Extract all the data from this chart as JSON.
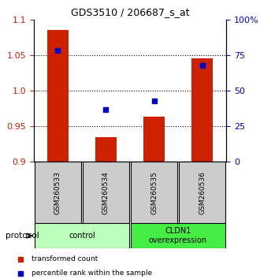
{
  "title": "GDS3510 / 206687_s_at",
  "samples": [
    "GSM260533",
    "GSM260534",
    "GSM260535",
    "GSM260536"
  ],
  "transformed_counts": [
    1.085,
    0.935,
    0.963,
    1.045
  ],
  "percentile_ranks": [
    78,
    37,
    43,
    68
  ],
  "ylim_left": [
    0.9,
    1.1
  ],
  "ylim_right": [
    0,
    100
  ],
  "yticks_left": [
    0.9,
    0.95,
    1.0,
    1.05,
    1.1
  ],
  "yticks_right": [
    0,
    25,
    50,
    75,
    100
  ],
  "ytick_labels_right": [
    "0",
    "25",
    "50",
    "75",
    "100%"
  ],
  "bar_color": "#cc2200",
  "square_color": "#0000cc",
  "groups": [
    {
      "label": "control",
      "samples": [
        0,
        1
      ],
      "color": "#bbffbb"
    },
    {
      "label": "CLDN1\noverexpression",
      "samples": [
        2,
        3
      ],
      "color": "#44ee44"
    }
  ],
  "protocol_label": "protocol",
  "legend_items": [
    {
      "color": "#cc2200",
      "label": "transformed count"
    },
    {
      "color": "#0000cc",
      "label": "percentile rank within the sample"
    }
  ],
  "sample_box_color": "#cccccc",
  "bar_width": 0.45,
  "base_value": 0.9
}
